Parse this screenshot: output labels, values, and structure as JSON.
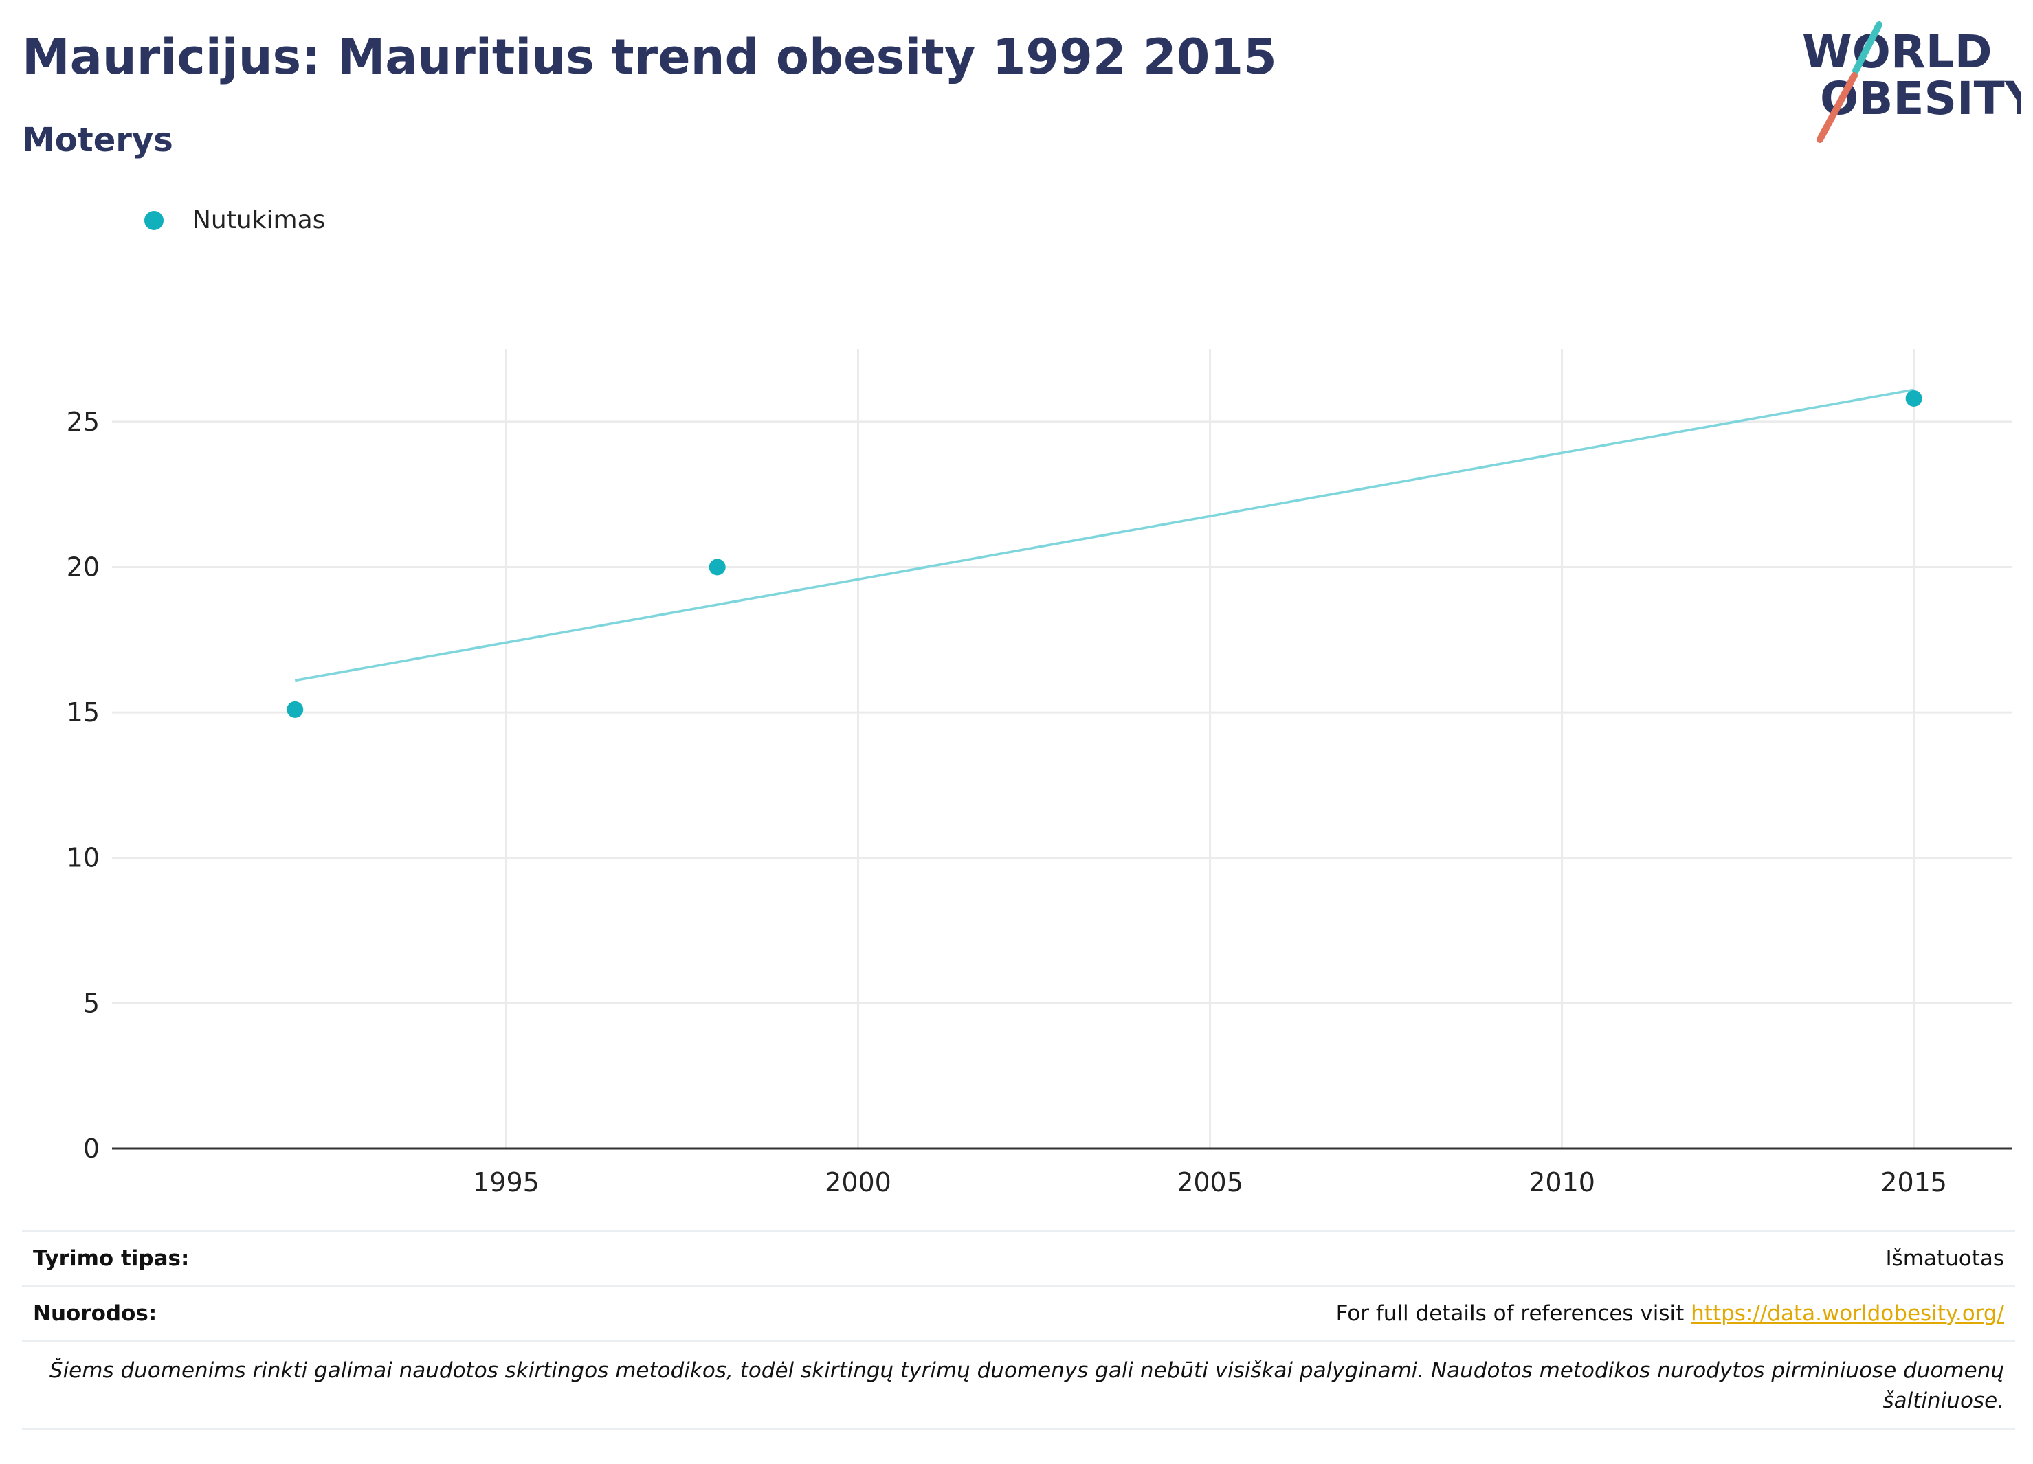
{
  "header": {
    "title": "Mauricijus: Mauritius trend obesity 1992 2015",
    "subtitle": "Moterys"
  },
  "logo": {
    "line1": "WORLD",
    "line2": "OBESITY"
  },
  "colors": {
    "series": "#12b0bd",
    "trend": "#7ed6dc",
    "title": "#2b3560",
    "link": "#e0a800",
    "accent_red": "#e2725b"
  },
  "legend": {
    "label": "Nutukimas"
  },
  "chart_data": {
    "type": "scatter",
    "series": [
      {
        "name": "Nutukimas",
        "x": [
          1992,
          1998,
          2015
        ],
        "y": [
          15.1,
          20.0,
          25.8
        ]
      }
    ],
    "trendline": {
      "x": [
        1992,
        2015
      ],
      "y": [
        16.1,
        26.1
      ]
    },
    "xlim": [
      1989.4,
      2016.4
    ],
    "ylim": [
      0,
      27.5
    ],
    "xticks": [
      1995,
      2000,
      2005,
      2010,
      2015
    ],
    "yticks": [
      0,
      5,
      10,
      15,
      20,
      25
    ],
    "grid": true,
    "legend_position": "top-left"
  },
  "footer": {
    "rows": [
      {
        "key": "Tyrimo tipas:",
        "value": "Išmatuotas"
      },
      {
        "key": "Nuorodos:",
        "value_prefix": "For full details of references visit ",
        "link": "https://data.worldobesity.org/"
      }
    ],
    "note": "Šiems duomenims rinkti galimai naudotos skirtingos metodikos, todėl skirtingų tyrimų duomenys gali nebūti visiškai palyginami. Naudotos metodikos nurodytos pirminiuose duomenų šaltiniuose."
  }
}
